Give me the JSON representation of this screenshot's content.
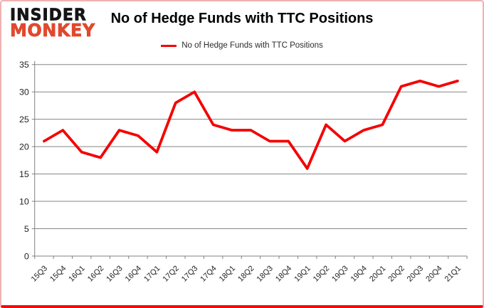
{
  "logo": {
    "line1": "INSIDER",
    "line2": "MONKEY",
    "top_color": "#151515",
    "bottom_color": "#e0492e"
  },
  "colors": {
    "line": "#f40000",
    "grid": "#858585",
    "axis": "#808080",
    "tick_label": "#1f1f1f",
    "frame_bottom": "#fa0808",
    "frame_sides": "#f0b2b2"
  },
  "chart_data": {
    "type": "line",
    "title": "No of Hedge Funds with TTC Positions",
    "legend_label": "No of Hedge Funds with TTC Positions",
    "legend_position": "top-center",
    "categories": [
      "15Q3",
      "15Q4",
      "16Q1",
      "16Q2",
      "16Q3",
      "16Q4",
      "17Q1",
      "17Q2",
      "17Q3",
      "17Q4",
      "18Q1",
      "18Q2",
      "18Q3",
      "18Q4",
      "19Q1",
      "19Q2",
      "19Q3",
      "19Q4",
      "20Q1",
      "20Q2",
      "20Q3",
      "20Q4",
      "21Q1"
    ],
    "series": [
      {
        "name": "No of Hedge Funds with TTC Positions",
        "color": "#f40000",
        "values": [
          21,
          23,
          19,
          18,
          23,
          22,
          19,
          28,
          30,
          24,
          23,
          23,
          21,
          21,
          16,
          24,
          21,
          23,
          24,
          31,
          32,
          31,
          32
        ]
      }
    ],
    "xlabel": "",
    "ylabel": "",
    "ylim": [
      0,
      35
    ],
    "yticks": [
      0,
      5,
      10,
      15,
      20,
      25,
      30,
      35
    ],
    "grid": true
  }
}
